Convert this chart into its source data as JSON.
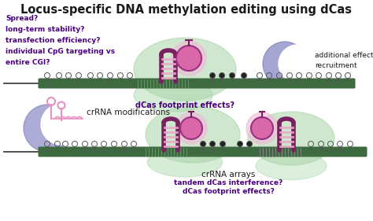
{
  "title": "Locus-specific DNA methylation editing using dCas",
  "title_fontsize": 10.5,
  "bg_color": "#ffffff",
  "purple_text_color": "#4a0080",
  "dark_text_color": "#1a1a1a",
  "green_dna_color": "#3d6b3f",
  "green_blob_color": "#a8d5a8",
  "pink_ball_color": "#d968a8",
  "pink_ball_edge": "#9b3080",
  "pink_glow_color": "#f0b8d8",
  "purple_crescent_color": "#8080c0",
  "dark_maroon_color": "#7a2060",
  "pink_stripe_color": "#e8a8c8",
  "pink_rna_color": "#e890c0",
  "panel1_questions": [
    "Spread?",
    "long-term stability?",
    "transfection efficiency?",
    "individual CpG targeting vs",
    "entire CGI?"
  ],
  "panel1_right_text": [
    "additional effector",
    "recruitment"
  ],
  "panel1_bottom_text": "dCas footprint effects?",
  "panel2_left_label": "crRNA modifications",
  "panel2_bottom_label": [
    "crRNA arrays",
    "tandem dCas interference?",
    "dCas footprint effects?"
  ]
}
